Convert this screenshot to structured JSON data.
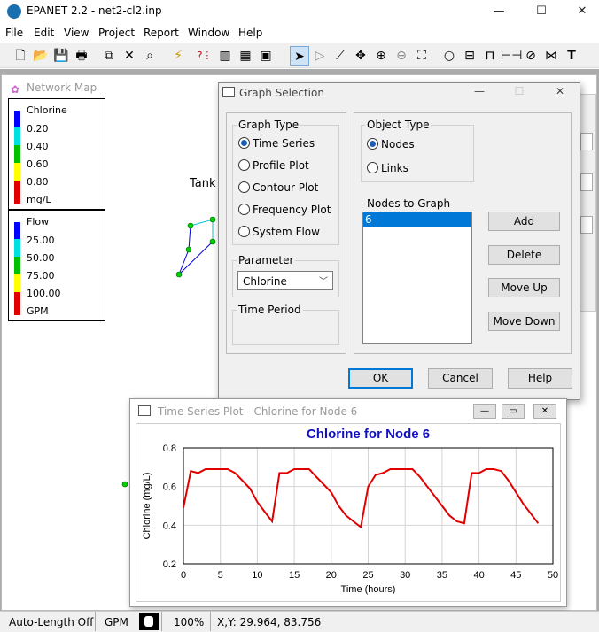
{
  "app": {
    "title": "EPANET 2.2 - net2-cl2.inp",
    "minimize": "—",
    "maximize": "☐",
    "close": "✕"
  },
  "menu": [
    "File",
    "Edit",
    "View",
    "Project",
    "Report",
    "Window",
    "Help"
  ],
  "toolbar": {
    "icons": [
      "new-icon",
      "open-icon",
      "save-icon",
      "print-icon",
      "copy-icon",
      "delete-icon",
      "find-icon",
      "run-icon",
      "query-icon",
      "graph-icon",
      "table-icon",
      "options-icon",
      "select-object-icon",
      "select-vertex-icon",
      "select-region-icon",
      "pan-icon",
      "zoom-in-icon",
      "zoom-out-icon",
      "full-extent-icon",
      "junction-icon",
      "reservoir-icon",
      "tank-icon",
      "pipe-icon",
      "pump-icon",
      "valve-icon",
      "label-icon"
    ],
    "label_tool": "T"
  },
  "network_map": {
    "title": "Network Map",
    "tank_label": "Tank"
  },
  "legend_chlorine": {
    "title": "Chlorine",
    "items": [
      {
        "value": "0.20",
        "color": "#0000ff"
      },
      {
        "value": "0.40",
        "color": "#00e0e0"
      },
      {
        "value": "0.60",
        "color": "#00c000"
      },
      {
        "value": "0.80",
        "color": "#ffff00"
      },
      {
        "value": "mg/L",
        "color": "#e00000"
      }
    ]
  },
  "legend_flow": {
    "title": "Flow",
    "items": [
      {
        "value": "25.00",
        "color": "#0000ff"
      },
      {
        "value": "50.00",
        "color": "#00e0e0"
      },
      {
        "value": "75.00",
        "color": "#00c000"
      },
      {
        "value": "100.00",
        "color": "#ffff00"
      },
      {
        "value": "GPM",
        "color": "#e00000"
      }
    ]
  },
  "graph_selection": {
    "title": "Graph Selection",
    "graph_type": {
      "label": "Graph Type",
      "options": [
        "Time Series",
        "Profile Plot",
        "Contour Plot",
        "Frequency Plot",
        "System Flow"
      ],
      "selected": 0
    },
    "parameter": {
      "label": "Parameter",
      "value": "Chlorine"
    },
    "time_period": {
      "label": "Time Period"
    },
    "object_type": {
      "label": "Object Type",
      "options": [
        "Nodes",
        "Links"
      ],
      "selected": 0
    },
    "nodes_to_graph": {
      "label": "Nodes to Graph",
      "items": [
        "6"
      ]
    },
    "buttons": {
      "add": "Add",
      "delete": "Delete",
      "move_up": "Move Up",
      "move_down": "Move Down",
      "ok": "OK",
      "cancel": "Cancel",
      "help": "Help"
    }
  },
  "ts_window": {
    "title": "Time Series Plot - Chlorine for Node 6"
  },
  "chart_data": {
    "type": "line",
    "title": "Chlorine for Node 6",
    "xlabel": "Time (hours)",
    "ylabel": "Chlorine (mg/L)",
    "xlim": [
      0,
      50
    ],
    "ylim": [
      0.2,
      0.8
    ],
    "xticks": [
      "0",
      "5",
      "10",
      "15",
      "20",
      "25",
      "30",
      "35",
      "40",
      "45",
      "50"
    ],
    "yticks": [
      "0.2",
      "0.4",
      "0.6",
      "0.8"
    ],
    "grid": true,
    "color": "#e00000",
    "x": [
      0,
      1,
      2,
      3,
      4,
      5,
      6,
      7,
      8,
      9,
      10,
      11,
      12,
      13,
      14,
      15,
      16,
      17,
      18,
      19,
      20,
      21,
      22,
      23,
      24,
      25,
      26,
      27,
      28,
      29,
      30,
      31,
      32,
      33,
      34,
      35,
      36,
      37,
      38,
      39,
      40,
      41,
      42,
      43,
      44,
      45,
      46,
      47,
      48
    ],
    "y": [
      0.49,
      0.68,
      0.67,
      0.69,
      0.69,
      0.69,
      0.69,
      0.67,
      0.63,
      0.59,
      0.52,
      0.47,
      0.42,
      0.67,
      0.67,
      0.69,
      0.69,
      0.69,
      0.65,
      0.61,
      0.57,
      0.5,
      0.45,
      0.42,
      0.39,
      0.6,
      0.66,
      0.67,
      0.69,
      0.69,
      0.69,
      0.69,
      0.65,
      0.6,
      0.55,
      0.5,
      0.45,
      0.42,
      0.41,
      0.67,
      0.67,
      0.69,
      0.69,
      0.68,
      0.63,
      0.57,
      0.51,
      0.46,
      0.41
    ]
  },
  "status": {
    "auto_length": "Auto-Length Off",
    "units": "GPM",
    "zoom": "100%",
    "coords": "X,Y: 29.964, 83.756"
  }
}
